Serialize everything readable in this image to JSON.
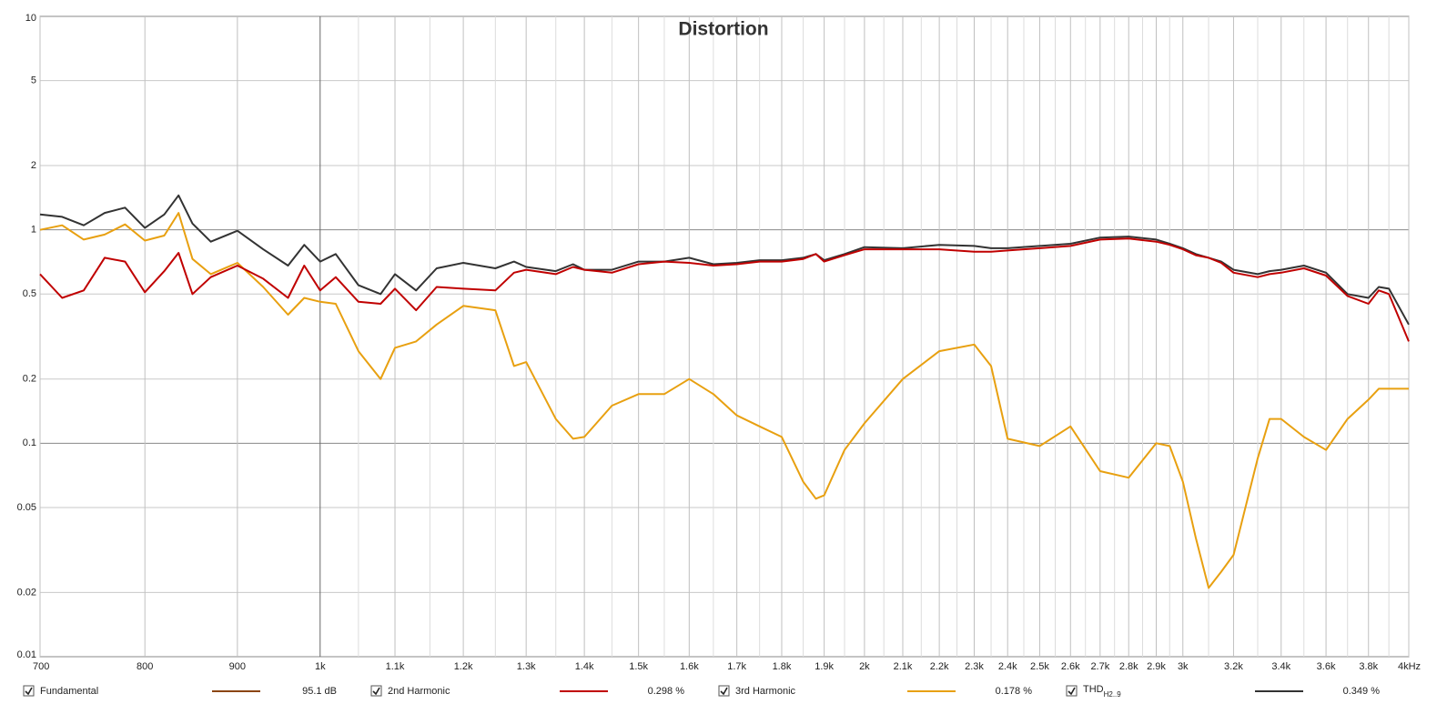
{
  "chart_data": {
    "type": "line",
    "title": "Distortion",
    "x_scale": "log",
    "y_scale": "log",
    "grid": true,
    "xlim": [
      700,
      4000
    ],
    "ylim": [
      0.01,
      10
    ],
    "yticks": [
      0.01,
      0.02,
      0.05,
      0.1,
      0.2,
      0.5,
      1,
      2,
      5,
      10
    ],
    "xticks": [
      700,
      800,
      900,
      {
        "value": 1000,
        "label": "1k"
      },
      {
        "value": 1100,
        "label": "1.1k"
      },
      {
        "value": 1200,
        "label": "1.2k"
      },
      {
        "value": 1300,
        "label": "1.3k"
      },
      {
        "value": 1400,
        "label": "1.4k"
      },
      {
        "value": 1500,
        "label": "1.5k"
      },
      {
        "value": 1600,
        "label": "1.6k"
      },
      {
        "value": 1700,
        "label": "1.7k"
      },
      {
        "value": 1800,
        "label": "1.8k"
      },
      {
        "value": 1900,
        "label": "1.9k"
      },
      {
        "value": 2000,
        "label": "2k"
      },
      {
        "value": 2100,
        "label": "2.1k"
      },
      {
        "value": 2200,
        "label": "2.2k"
      },
      {
        "value": 2300,
        "label": "2.3k"
      },
      {
        "value": 2400,
        "label": "2.4k"
      },
      {
        "value": 2500,
        "label": "2.5k"
      },
      {
        "value": 2600,
        "label": "2.6k"
      },
      {
        "value": 2700,
        "label": "2.7k"
      },
      {
        "value": 2800,
        "label": "2.8k"
      },
      {
        "value": 2900,
        "label": "2.9k"
      },
      {
        "value": 3000,
        "label": "3k"
      },
      {
        "value": 3200,
        "label": "3.2k"
      },
      {
        "value": 3400,
        "label": "3.4k"
      },
      {
        "value": 3600,
        "label": "3.6k"
      },
      {
        "value": 3800,
        "label": "3.8k"
      },
      {
        "value": 4000,
        "label": "4kHz"
      }
    ],
    "xticks_minor": [
      1050,
      1150,
      1250,
      1350,
      1450,
      1550,
      1650,
      1750,
      1850,
      1950,
      2050,
      2150,
      2250,
      2350,
      2450,
      2550,
      2650,
      2750,
      2850,
      2950,
      3100,
      3300,
      3500,
      3700,
      3900
    ],
    "x": [
      700,
      720,
      740,
      760,
      780,
      800,
      820,
      835,
      850,
      870,
      900,
      930,
      960,
      980,
      1000,
      1020,
      1050,
      1080,
      1100,
      1130,
      1160,
      1200,
      1250,
      1280,
      1300,
      1350,
      1380,
      1400,
      1450,
      1500,
      1550,
      1600,
      1650,
      1700,
      1750,
      1800,
      1850,
      1880,
      1900,
      1950,
      2000,
      2100,
      2200,
      2300,
      2350,
      2400,
      2500,
      2600,
      2700,
      2800,
      2900,
      2950,
      3000,
      3050,
      3100,
      3150,
      3200,
      3300,
      3350,
      3400,
      3500,
      3600,
      3700,
      3800,
      3850,
      3900,
      4000
    ],
    "fundamental": {
      "name": "Fundamental",
      "color": "#8b4513",
      "readout": "95.1 dB"
    },
    "series": [
      {
        "name": "2nd Harmonic",
        "color": "#c00000",
        "readout": "0.298 %",
        "values": [
          0.62,
          0.48,
          0.52,
          0.74,
          0.71,
          0.51,
          0.64,
          0.78,
          0.5,
          0.6,
          0.68,
          0.59,
          0.48,
          0.68,
          0.52,
          0.6,
          0.46,
          0.45,
          0.53,
          0.42,
          0.54,
          0.53,
          0.52,
          0.63,
          0.65,
          0.62,
          0.67,
          0.65,
          0.63,
          0.69,
          0.71,
          0.7,
          0.68,
          0.69,
          0.71,
          0.71,
          0.73,
          0.77,
          0.71,
          0.76,
          0.81,
          0.81,
          0.81,
          0.79,
          0.79,
          0.8,
          0.82,
          0.84,
          0.9,
          0.91,
          0.88,
          0.85,
          0.81,
          0.76,
          0.74,
          0.7,
          0.63,
          0.6,
          0.62,
          0.63,
          0.66,
          0.61,
          0.49,
          0.45,
          0.52,
          0.5,
          0.3
        ]
      },
      {
        "name": "3rd Harmonic",
        "color": "#e8a010",
        "readout": "0.178 %",
        "values": [
          1.0,
          1.05,
          0.9,
          0.95,
          1.06,
          0.89,
          0.94,
          1.2,
          0.73,
          0.62,
          0.7,
          0.54,
          0.4,
          0.48,
          0.46,
          0.45,
          0.27,
          0.2,
          0.28,
          0.3,
          0.36,
          0.44,
          0.42,
          0.23,
          0.24,
          0.13,
          0.105,
          0.107,
          0.15,
          0.17,
          0.17,
          0.2,
          0.17,
          0.135,
          0.12,
          0.107,
          0.066,
          0.055,
          0.057,
          0.093,
          0.124,
          0.2,
          0.27,
          0.29,
          0.23,
          0.105,
          0.097,
          0.12,
          0.074,
          0.069,
          0.1,
          0.097,
          0.066,
          0.036,
          0.021,
          0.025,
          0.03,
          0.085,
          0.13,
          0.13,
          0.107,
          0.093,
          0.13,
          0.16,
          0.18,
          0.18,
          0.18
        ]
      },
      {
        "name": "THD",
        "name_sub": "H2..9",
        "color": "#333333",
        "readout": "0.349 %",
        "values": [
          1.18,
          1.15,
          1.05,
          1.2,
          1.27,
          1.02,
          1.18,
          1.45,
          1.07,
          0.88,
          0.99,
          0.81,
          0.68,
          0.85,
          0.71,
          0.77,
          0.55,
          0.5,
          0.62,
          0.52,
          0.66,
          0.7,
          0.66,
          0.71,
          0.67,
          0.64,
          0.69,
          0.65,
          0.65,
          0.71,
          0.71,
          0.74,
          0.69,
          0.7,
          0.72,
          0.72,
          0.74,
          0.77,
          0.72,
          0.77,
          0.83,
          0.82,
          0.85,
          0.84,
          0.82,
          0.82,
          0.84,
          0.86,
          0.92,
          0.93,
          0.9,
          0.86,
          0.82,
          0.77,
          0.74,
          0.71,
          0.65,
          0.62,
          0.64,
          0.65,
          0.68,
          0.63,
          0.5,
          0.48,
          0.54,
          0.53,
          0.36
        ]
      }
    ]
  }
}
